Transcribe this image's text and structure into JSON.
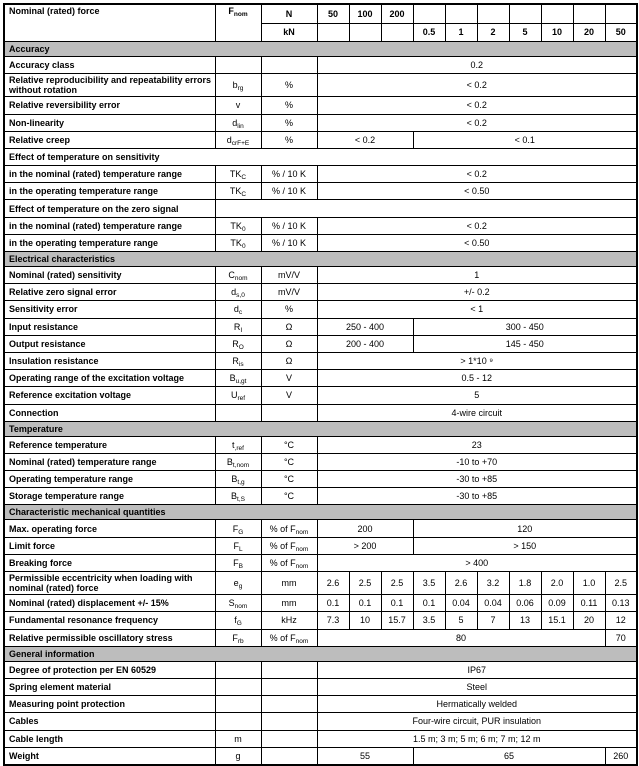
{
  "colors": {
    "section_bg": "#bdbdbd",
    "border": "#000000",
    "text": "#000000",
    "page_bg": "#ffffff"
  },
  "header": {
    "label": "Nominal (rated) force",
    "symbol": {
      "m": "F",
      "s": "nom"
    },
    "unit_row1": "N",
    "unit_row2": "kN",
    "values_row1": [
      "50",
      "100",
      "200",
      "",
      "",
      "",
      "",
      "",
      "",
      ""
    ],
    "values_row2": [
      "",
      "",
      "",
      "0.5",
      "1",
      "2",
      "5",
      "10",
      "20",
      "50"
    ]
  },
  "rows": [
    {
      "t": "sec",
      "label": "Accuracy"
    },
    {
      "t": "d",
      "label": "Accuracy class",
      "sym": null,
      "unit": null,
      "vals": [
        [
          "0.2",
          10
        ]
      ]
    },
    {
      "t": "d",
      "label": "Relative reproducibility and repeatability errors without rotation",
      "sym": {
        "m": "b",
        "s": "rg"
      },
      "unit": {
        "m": "%"
      },
      "vals": [
        [
          "< 0.2",
          10
        ]
      ]
    },
    {
      "t": "d",
      "label": "Relative reversibility error",
      "sym": {
        "m": "v"
      },
      "unit": {
        "m": "%"
      },
      "vals": [
        [
          "< 0.2",
          10
        ]
      ]
    },
    {
      "t": "d",
      "label": "Non-linearity",
      "sym": {
        "m": "d",
        "s": "lin"
      },
      "unit": {
        "m": "%"
      },
      "vals": [
        [
          "< 0.2",
          10
        ]
      ]
    },
    {
      "t": "d",
      "label": "Relative creep",
      "sym": {
        "m": "d",
        "s": "crF+E"
      },
      "unit": {
        "m": "%"
      },
      "vals": [
        [
          "< 0.2",
          3
        ],
        [
          "< 0.1",
          7
        ]
      ]
    },
    {
      "t": "sub",
      "label": "Effect of temperature on sensitivity",
      "split": false
    },
    {
      "t": "d",
      "label": "in the nominal (rated) temperature range",
      "sym": {
        "m": "TK",
        "s": "C"
      },
      "unit": {
        "m": "% / 10 K"
      },
      "vals": [
        [
          "< 0.2",
          10
        ]
      ]
    },
    {
      "t": "d",
      "label": "in the operating temperature range",
      "sym": {
        "m": "TK",
        "s": "C"
      },
      "unit": {
        "m": "% / 10 K"
      },
      "vals": [
        [
          "< 0.50",
          10
        ]
      ]
    },
    {
      "t": "sub",
      "label": "Effect of temperature on the zero signal",
      "split": true
    },
    {
      "t": "d",
      "label": "in the nominal (rated) temperature range",
      "sym": {
        "m": "TK",
        "s": "0"
      },
      "unit": {
        "m": "% / 10 K"
      },
      "vals": [
        [
          "< 0.2",
          10
        ]
      ]
    },
    {
      "t": "d",
      "label": "in the operating temperature range",
      "sym": {
        "m": "TK",
        "s": "0"
      },
      "unit": {
        "m": "% / 10 K"
      },
      "vals": [
        [
          "< 0.50",
          10
        ]
      ]
    },
    {
      "t": "sec",
      "label": "Electrical characteristics"
    },
    {
      "t": "d",
      "label": "Nominal (rated) sensitivity",
      "sym": {
        "m": "C",
        "s": "nom"
      },
      "unit": {
        "m": "mV/V"
      },
      "vals": [
        [
          "1",
          10
        ]
      ]
    },
    {
      "t": "d",
      "label": "Relative zero signal error",
      "sym": {
        "m": "d",
        "s": "s,0"
      },
      "unit": {
        "m": "mV/V"
      },
      "vals": [
        [
          "+/- 0.2",
          10
        ]
      ]
    },
    {
      "t": "d",
      "label": "Sensitivity error",
      "sym": {
        "m": "d",
        "s": "c"
      },
      "unit": {
        "m": "%"
      },
      "vals": [
        [
          "< 1",
          10
        ]
      ]
    },
    {
      "t": "d",
      "label": "Input resistance",
      "sym": {
        "m": "R",
        "s": "I"
      },
      "unit": {
        "m": "Ω"
      },
      "vals": [
        [
          "250 - 400",
          3
        ],
        [
          "300 - 450",
          7
        ]
      ]
    },
    {
      "t": "d",
      "label": "Output resistance",
      "sym": {
        "m": "R",
        "s": "O"
      },
      "unit": {
        "m": "Ω"
      },
      "vals": [
        [
          "200 - 400",
          3
        ],
        [
          "145 - 450",
          7
        ]
      ]
    },
    {
      "t": "d",
      "label": "Insulation resistance",
      "sym": {
        "m": "R",
        "s": "is"
      },
      "unit": {
        "m": "Ω"
      },
      "vals": [
        [
          "> 1*10 ⁹",
          10
        ]
      ]
    },
    {
      "t": "d",
      "label": "Operating range of the excitation voltage",
      "sym": {
        "m": "B",
        "s": "u,gt"
      },
      "unit": {
        "m": "V"
      },
      "vals": [
        [
          "0.5 - 12",
          10
        ]
      ]
    },
    {
      "t": "d",
      "label": "Reference excitation voltage",
      "sym": {
        "m": "U",
        "s": "ref"
      },
      "unit": {
        "m": "V"
      },
      "vals": [
        [
          "5",
          10
        ]
      ]
    },
    {
      "t": "d",
      "label": "Connection",
      "sym": null,
      "unit": null,
      "vals": [
        [
          "4-wire circuit",
          10
        ]
      ]
    },
    {
      "t": "sec",
      "label": "Temperature"
    },
    {
      "t": "d",
      "label": "Reference temperature",
      "sym": {
        "m": "t",
        "s": ",ref"
      },
      "unit": {
        "m": "°C"
      },
      "vals": [
        [
          "23",
          10
        ]
      ]
    },
    {
      "t": "d",
      "label": "Nominal (rated) temperature range",
      "sym": {
        "m": "B",
        "s": "t,nom"
      },
      "unit": {
        "m": "°C"
      },
      "vals": [
        [
          "-10 to +70",
          10
        ]
      ]
    },
    {
      "t": "d",
      "label": "Operating temperature range",
      "sym": {
        "m": "B",
        "s": "t,g"
      },
      "unit": {
        "m": "°C"
      },
      "vals": [
        [
          "-30 to +85",
          10
        ]
      ]
    },
    {
      "t": "d",
      "label": "Storage temperature range",
      "sym": {
        "m": "B",
        "s": "t,S"
      },
      "unit": {
        "m": "°C"
      },
      "vals": [
        [
          "-30 to +85",
          10
        ]
      ]
    },
    {
      "t": "sec",
      "label": "Characteristic mechanical quantities"
    },
    {
      "t": "d",
      "label": "Max. operating force",
      "sym": {
        "m": "F",
        "s": "G"
      },
      "unit": {
        "m": "% of F",
        "s": "nom"
      },
      "vals": [
        [
          "200",
          3
        ],
        [
          "120",
          7
        ]
      ]
    },
    {
      "t": "d",
      "label": "Limit force",
      "sym": {
        "m": "F",
        "s": "L"
      },
      "unit": {
        "m": "% of F",
        "s": "nom"
      },
      "vals": [
        [
          "> 200",
          3
        ],
        [
          "> 150",
          7
        ]
      ]
    },
    {
      "t": "d",
      "label": "Breaking force",
      "sym": {
        "m": "F",
        "s": "B"
      },
      "unit": {
        "m": "% of F",
        "s": "nom"
      },
      "vals": [
        [
          "> 400",
          10
        ]
      ]
    },
    {
      "t": "d",
      "label": "Permissible eccentricity when loading with nominal (rated) force",
      "sym": {
        "m": "e",
        "s": "g"
      },
      "unit": {
        "m": "mm"
      },
      "vals": [
        [
          "2.6",
          1
        ],
        [
          "2.5",
          1
        ],
        [
          "2.5",
          1
        ],
        [
          "3.5",
          1
        ],
        [
          "2.6",
          1
        ],
        [
          "3.2",
          1
        ],
        [
          "1.8",
          1
        ],
        [
          "2.0",
          1
        ],
        [
          "1.0",
          1
        ],
        [
          "2.5",
          1
        ]
      ]
    },
    {
      "t": "d",
      "label": "Nominal (rated) displacement +/- 15%",
      "sym": {
        "m": "S",
        "s": "nom"
      },
      "unit": {
        "m": "mm"
      },
      "vals": [
        [
          "0.1",
          1
        ],
        [
          "0.1",
          1
        ],
        [
          "0.1",
          1
        ],
        [
          "0.1",
          1
        ],
        [
          "0.04",
          1
        ],
        [
          "0.04",
          1
        ],
        [
          "0.06",
          1
        ],
        [
          "0.09",
          1
        ],
        [
          "0.11",
          1
        ],
        [
          "0.13",
          1
        ]
      ]
    },
    {
      "t": "d",
      "label": "Fundamental resonance frequency",
      "sym": {
        "m": "f",
        "s": "G"
      },
      "unit": {
        "m": "kHz"
      },
      "vals": [
        [
          "7.3",
          1
        ],
        [
          "10",
          1
        ],
        [
          "15.7",
          1
        ],
        [
          "3.5",
          1
        ],
        [
          "5",
          1
        ],
        [
          "7",
          1
        ],
        [
          "13",
          1
        ],
        [
          "15.1",
          1
        ],
        [
          "20",
          1
        ],
        [
          "12",
          1
        ]
      ]
    },
    {
      "t": "d",
      "label": "Relative permissible oscillatory stress",
      "sym": {
        "m": "F",
        "s": "rb"
      },
      "unit": {
        "m": "% of F",
        "s": "nom"
      },
      "vals": [
        [
          "80",
          9
        ],
        [
          "70",
          1
        ]
      ]
    },
    {
      "t": "sec",
      "label": "General information"
    },
    {
      "t": "d",
      "label": "Degree of protection per EN 60529",
      "sym": null,
      "unit": null,
      "vals": [
        [
          "IP67",
          10
        ]
      ]
    },
    {
      "t": "d",
      "label": "Spring element material",
      "sym": null,
      "unit": null,
      "vals": [
        [
          "Steel",
          10
        ]
      ]
    },
    {
      "t": "d",
      "label": "Measuring point protection",
      "sym": null,
      "unit": null,
      "vals": [
        [
          "Hermatically welded",
          10
        ]
      ]
    },
    {
      "t": "d",
      "label": "Cables",
      "sym": null,
      "unit": null,
      "vals": [
        [
          "Four-wire circuit, PUR insulation",
          10
        ]
      ]
    },
    {
      "t": "d",
      "label": "Cable length",
      "sym": {
        "m": "m"
      },
      "unit": null,
      "vals": [
        [
          "1.5 m; 3 m; 5 m; 6 m; 7 m; 12 m",
          10
        ]
      ]
    },
    {
      "t": "d",
      "label": "Weight",
      "sym": {
        "m": "g"
      },
      "unit": null,
      "vals": [
        [
          "55",
          3
        ],
        [
          "65",
          6
        ],
        [
          "260",
          1
        ]
      ]
    }
  ]
}
